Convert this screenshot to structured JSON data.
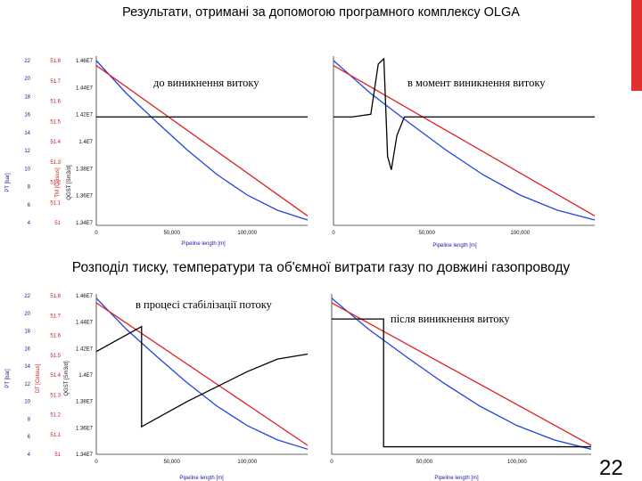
{
  "slide": {
    "title_top": "Результати, отримані за допомогою програмного комплексу OLGA",
    "title_mid": "Розподіл тиску, температури та об'ємної витрати газу по довжині газопроводу",
    "page_number": "22"
  },
  "colors": {
    "pressure": "#2244dd",
    "temperature": "#dd2222",
    "flow": "#000000",
    "accent_bar": "#e03030",
    "pressure_ticks": "#1a1aa0",
    "temperature_ticks": "#cc1a1a"
  },
  "chart_data": [
    {
      "type": "line",
      "annotation": "до виникнення витоку",
      "xlabel": "Pipeline length [m]",
      "x_ticks": [
        "0",
        "50,000",
        "100,000"
      ],
      "xlim": [
        0,
        140000
      ],
      "y_pressure_label": "PT [bar]",
      "y_pressure_ticks": [
        "22",
        "20",
        "18",
        "16",
        "14",
        "12",
        "10",
        "8",
        "6",
        "4"
      ],
      "y_temperature_label": "TM [Celsius]",
      "y_temperature_ticks": [
        "51.8",
        "51.7",
        "51.6",
        "51.5",
        "51.4",
        "51.3",
        "51.2",
        "51.1",
        "51"
      ],
      "y_flow_label": "QGST [Sm3/d]",
      "y_flow_ticks": [
        "1.46E7",
        "1.44E7",
        "1.42E7",
        "1.4E7",
        "1.38E7",
        "1.36E7",
        "1.34E7"
      ],
      "series": [
        {
          "key": "pressure",
          "x": [
            0,
            20000,
            40000,
            60000,
            80000,
            100000,
            120000,
            140000
          ],
          "y": [
            22,
            18.3,
            15.1,
            12.0,
            9.2,
            6.9,
            5.2,
            4.1
          ]
        },
        {
          "key": "temperature",
          "x": [
            0,
            140000
          ],
          "y": [
            51.8,
            51.0
          ]
        },
        {
          "key": "flow",
          "x": [
            0,
            140000
          ],
          "y": [
            14200000,
            14200000
          ]
        }
      ]
    },
    {
      "type": "line",
      "annotation": "в момент виникнення витоку",
      "xlabel": "Pipeline length [m]",
      "x_ticks": [
        "0",
        "50,000",
        "100,000"
      ],
      "xlim": [
        0,
        140000
      ],
      "series": [
        {
          "key": "pressure",
          "x": [
            0,
            20000,
            40000,
            60000,
            80000,
            100000,
            120000,
            140000
          ],
          "y": [
            22,
            18.3,
            15.1,
            12.0,
            9.2,
            6.9,
            5.2,
            4.1
          ]
        },
        {
          "key": "temperature",
          "x": [
            0,
            140000
          ],
          "y": [
            51.8,
            51.0
          ]
        },
        {
          "key": "flow",
          "x": [
            0,
            10000,
            20000,
            24000,
            27000,
            29000,
            31000,
            34000,
            38000,
            45000,
            140000
          ],
          "y": [
            14200000,
            14200000,
            14220000,
            14600000,
            14640000,
            13900000,
            13800000,
            14060000,
            14200000,
            14200000,
            14200000
          ]
        }
      ]
    },
    {
      "type": "line",
      "annotation": "в процесі стабілізації потоку",
      "xlabel": "Pipeline length [m]",
      "x_ticks": [
        "0",
        "50,000",
        "100,000"
      ],
      "xlim": [
        0,
        140000
      ],
      "y_pressure_label": "PT [bar]",
      "y_pressure_ticks": [
        "22",
        "20",
        "18",
        "16",
        "14",
        "12",
        "10",
        "8",
        "6",
        "4"
      ],
      "y_temperature_label": "DT [Celsius]",
      "y_temperature_ticks": [
        "51.8",
        "51.7",
        "51.6",
        "51.5",
        "51.4",
        "51.3",
        "51.2",
        "51.1",
        "51"
      ],
      "y_flow_label": "QGST [Sm3/d]",
      "y_flow_ticks": [
        "1.46E7",
        "1.44E7",
        "1.42E7",
        "1.4E7",
        "1.38E7",
        "1.36E7",
        "1.34E7"
      ],
      "series": [
        {
          "key": "pressure",
          "x": [
            0,
            20000,
            40000,
            60000,
            80000,
            100000,
            120000,
            140000
          ],
          "y": [
            22,
            18.3,
            15.1,
            12.0,
            9.2,
            6.9,
            5.2,
            4.1
          ]
        },
        {
          "key": "temperature",
          "x": [
            0,
            140000
          ],
          "y": [
            51.8,
            51.0
          ]
        },
        {
          "key": "flow",
          "x": [
            0,
            30000,
            30000,
            60000,
            80000,
            100000,
            120000,
            140000
          ],
          "y": [
            14200000,
            14400000,
            13600000,
            13800000,
            13920000,
            14040000,
            14140000,
            14180000
          ]
        }
      ]
    },
    {
      "type": "line",
      "annotation": "після виникнення витоку",
      "xlabel": "Pipeline length [m]",
      "x_ticks": [
        "0",
        "50,000",
        "100,000"
      ],
      "xlim": [
        0,
        140000
      ],
      "series": [
        {
          "key": "pressure",
          "x": [
            0,
            20000,
            40000,
            60000,
            80000,
            100000,
            120000,
            140000
          ],
          "y": [
            22,
            18.3,
            15.1,
            12.0,
            9.2,
            6.9,
            5.2,
            4.1
          ]
        },
        {
          "key": "temperature",
          "x": [
            0,
            140000
          ],
          "y": [
            51.8,
            51.0
          ]
        },
        {
          "key": "flow",
          "x": [
            0,
            28000,
            28000,
            140000
          ],
          "y": [
            14460000,
            14460000,
            13440000,
            13440000
          ]
        }
      ]
    }
  ]
}
